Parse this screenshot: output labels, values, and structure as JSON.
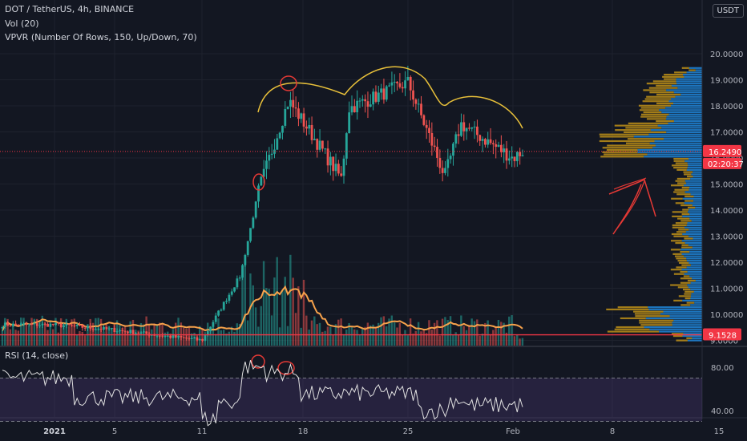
{
  "header": {
    "symbol_line": "DOT / TetherUS, 4h, BINANCE",
    "volume_indicator": "Vol (20)",
    "vpvr_indicator": "VPVR (Number Of Rows, 150, Up/Down, 70)",
    "rsi_indicator": "RSI (14, close)",
    "currency": "USDT"
  },
  "price_axis": {
    "ticks": [
      "20.0000",
      "19.0000",
      "18.0000",
      "17.0000",
      "16.0000",
      "15.0000",
      "14.0000",
      "13.0000",
      "12.0000",
      "11.0000",
      "10.0000",
      "9.0000"
    ],
    "current_price": "16.2490",
    "countdown": "02:20:37",
    "support_price": "9.1528",
    "current_color": "#f23645",
    "support_color": "#f23645"
  },
  "rsi_axis": {
    "ticks": [
      "80.00",
      "40.00"
    ]
  },
  "time_axis": {
    "ticks": [
      "2021",
      "5",
      "11",
      "18",
      "25",
      "Feb",
      "8",
      "15"
    ],
    "bold": "2021"
  },
  "chart_data": {
    "type": "candlestick",
    "symbol": "DOT/USDT",
    "timeframe": "4h",
    "ylim": [
      8.5,
      20.5
    ],
    "key_points": [
      {
        "label": "2021",
        "price": 9.6
      },
      {
        "label": "5",
        "price": 9.4
      },
      {
        "label": "11",
        "price": 9.0
      },
      {
        "label": "14",
        "price": 11.5
      },
      {
        "label": "15",
        "price": 14.8
      },
      {
        "label": "16",
        "price": 18.2
      },
      {
        "label": "18",
        "price": 17.4
      },
      {
        "label": "20",
        "price": 15.2
      },
      {
        "label": "21",
        "price": 17.9
      },
      {
        "label": "25",
        "price": 18.9
      },
      {
        "label": "28",
        "price": 15.3
      },
      {
        "label": "29",
        "price": 17.3
      },
      {
        "label": "Feb",
        "price": 16.0
      },
      {
        "label": "2",
        "price": 16.25
      }
    ],
    "annotations": [
      "head-and-shoulders curve",
      "red arrow pointing up toward 15.0"
    ],
    "rsi": {
      "ylim": [
        20,
        100
      ],
      "upper_band": 70,
      "lower_band": 30
    }
  },
  "colors": {
    "background": "#131722",
    "up": "#26a69a",
    "down": "#ef5350",
    "ma": "#f7a24b",
    "vp_up": "#2196f3",
    "vp_down": "#d4a017",
    "rsi": "#e0e0e0",
    "rsi_band": "#7e57c2",
    "pattern": "#e8c03a"
  }
}
